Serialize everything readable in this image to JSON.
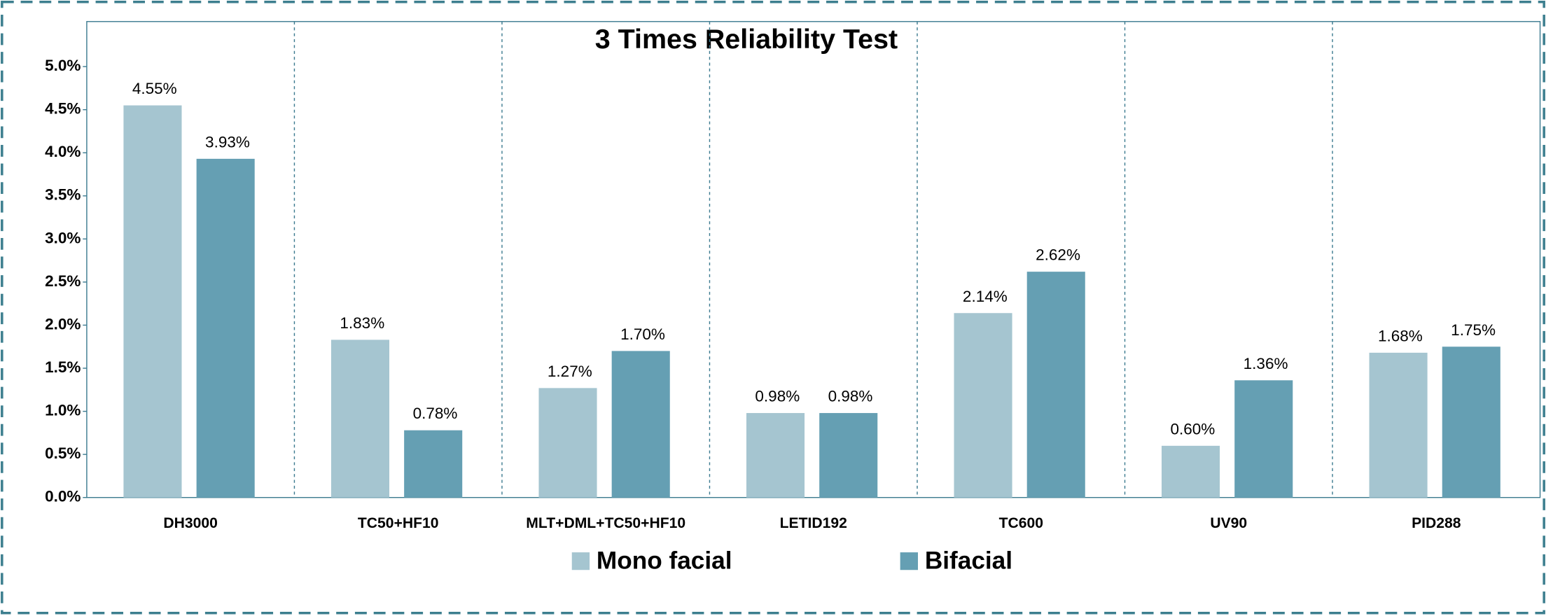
{
  "chart_data": {
    "type": "bar",
    "title": "3 Times Reliability Test",
    "categories": [
      "DH3000",
      "TC50+HF10",
      "MLT+DML+TC50+HF10",
      "LETID192",
      "TC600",
      "UV90",
      "PID288"
    ],
    "series": [
      {
        "name": "Mono facial",
        "color": "#a5c5d0",
        "values": [
          4.55,
          1.83,
          1.27,
          0.98,
          2.14,
          0.6,
          1.68
        ],
        "value_labels": [
          "4.55%",
          "1.83%",
          "1.27%",
          "0.98%",
          "2.14%",
          "0.60%",
          "1.68%"
        ]
      },
      {
        "name": "Bifacial",
        "color": "#659fb3",
        "values": [
          3.93,
          0.78,
          1.7,
          0.98,
          2.62,
          1.36,
          1.75
        ],
        "value_labels": [
          "3.93%",
          "0.78%",
          "1.70%",
          "0.98%",
          "2.62%",
          "1.36%",
          "1.75%"
        ]
      }
    ],
    "ylim": [
      0,
      5
    ],
    "yticks": [
      {
        "value": 0,
        "label": "0.0%"
      },
      {
        "value": 0.5,
        "label": "0.5%"
      },
      {
        "value": 1,
        "label": "1.0%"
      },
      {
        "value": 1.5,
        "label": "1.5%"
      },
      {
        "value": 2,
        "label": "2.0%"
      },
      {
        "value": 2.5,
        "label": "2.5%"
      },
      {
        "value": 3,
        "label": "3.0%"
      },
      {
        "value": 3.5,
        "label": "3.5%"
      },
      {
        "value": 4,
        "label": "4.0%"
      },
      {
        "value": 4.5,
        "label": "4.5%"
      },
      {
        "value": 5,
        "label": "5.0%"
      }
    ],
    "legend": "bottom"
  }
}
